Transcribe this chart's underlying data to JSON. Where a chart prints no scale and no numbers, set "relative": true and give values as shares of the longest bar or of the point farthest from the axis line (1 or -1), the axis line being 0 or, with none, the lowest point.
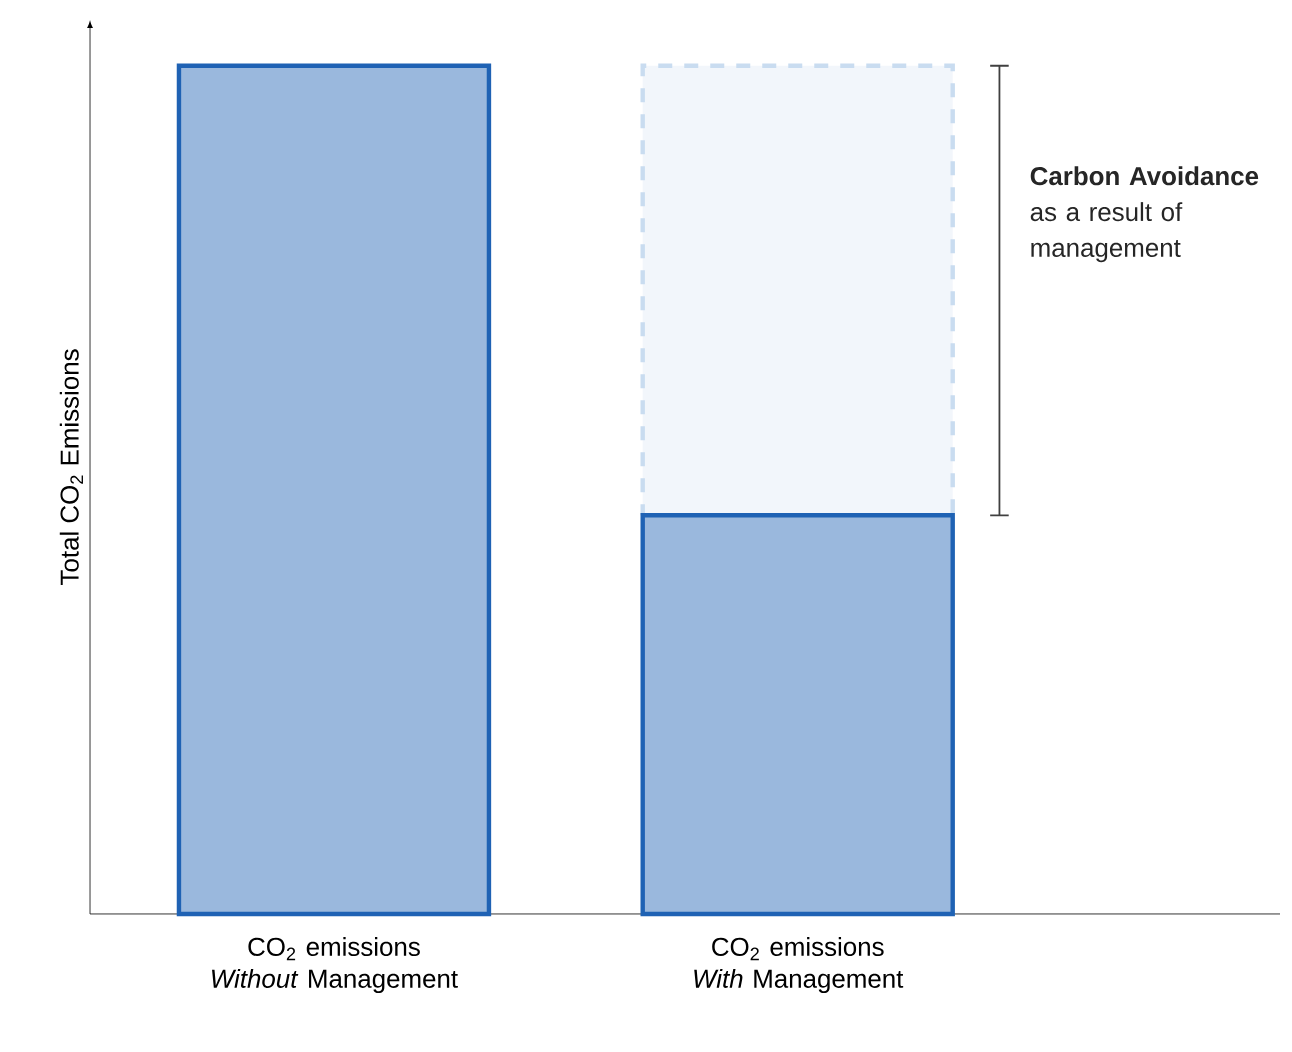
{
  "chart_data": {
    "type": "bar",
    "relative": true,
    "stacked": true,
    "ylabel": "Total CO$_{2}$ Emissions",
    "categories": [
      "CO$_{2}$ emissions *Without* Management",
      "CO$_{2}$ emissions *With* Management"
    ],
    "series": [
      {
        "color": "#1f62b4",
        "values": [
          1,
          0.47
        ],
        "line_style": "solid"
      },
      {
        "color": "#c9dcf0",
        "values": [
          null,
          0.53
        ],
        "line_style": "dashed"
      }
    ],
    "annotations": [
      "**Carbon Avoidance** as a result of management"
    ]
  }
}
